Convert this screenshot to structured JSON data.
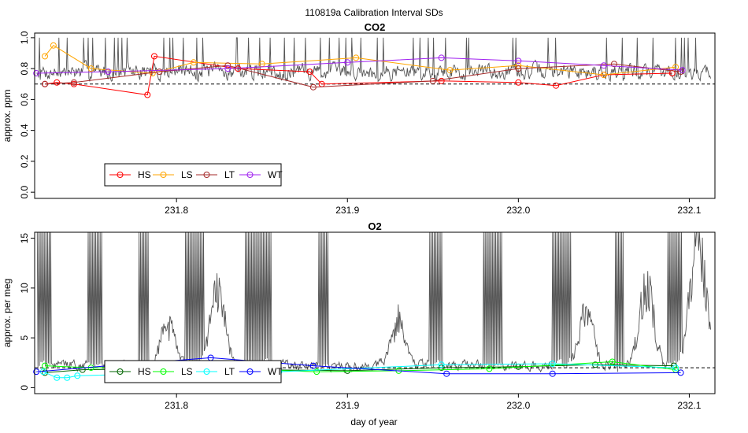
{
  "figure_title": "110819a   Calibration Interval SDs",
  "xlabel": "day of year",
  "chart_data": [
    {
      "type": "line",
      "title": "CO2",
      "ylabel": "approx. ppm",
      "xlim": [
        231.717,
        232.115
      ],
      "ylim": [
        -0.04,
        1.03
      ],
      "x_ticks": [
        "231.8",
        "231.9",
        "232.0",
        "232.1"
      ],
      "y_ticks": [
        "0.0",
        "0.2",
        "0.4",
        "0.6",
        "0.8",
        "1.0"
      ],
      "reference_line": 0.7,
      "legend": [
        "HS",
        "LS",
        "LT",
        "WT"
      ],
      "legend_location": "bottom-left",
      "background_trace": {
        "color": "#555555",
        "description_values_range": [
          0.5,
          1.0
        ],
        "seed": 7,
        "base": 0.78,
        "noise": 0.09,
        "spike_prob": 0.06,
        "spike_value": 1.0,
        "clip_max": 1.0
      },
      "series": [
        {
          "name": "HS",
          "color": "#ff0000",
          "x": [
            231.723,
            231.73,
            231.74,
            231.783,
            231.787,
            231.836,
            231.878,
            231.885,
            231.955,
            232.0,
            232.022,
            232.05,
            232.09
          ],
          "y": [
            0.7,
            0.71,
            0.7,
            0.63,
            0.88,
            0.8,
            0.78,
            0.7,
            0.72,
            0.71,
            0.69,
            0.76,
            0.77
          ]
        },
        {
          "name": "LS",
          "color": "#ffa500",
          "x": [
            231.723,
            231.728,
            231.75,
            231.786,
            231.81,
            231.85,
            231.905,
            231.96,
            232.0,
            232.05,
            232.092
          ],
          "y": [
            0.88,
            0.95,
            0.8,
            0.77,
            0.84,
            0.83,
            0.87,
            0.79,
            0.82,
            0.76,
            0.81
          ]
        },
        {
          "name": "LT",
          "color": "#a52a2a",
          "x": [
            231.723,
            231.74,
            231.79,
            231.83,
            231.88,
            231.95,
            232.0,
            232.056,
            232.095
          ],
          "y": [
            0.7,
            0.71,
            0.78,
            0.82,
            0.68,
            0.72,
            0.8,
            0.83,
            0.78
          ]
        },
        {
          "name": "WT",
          "color": "#a020f0",
          "x": [
            231.718,
            231.76,
            231.83,
            231.9,
            231.955,
            232.0,
            232.05,
            232.096
          ],
          "y": [
            0.77,
            0.78,
            0.8,
            0.84,
            0.87,
            0.85,
            0.82,
            0.79
          ]
        }
      ]
    },
    {
      "type": "line",
      "title": "O2",
      "ylabel": "approx. per meg",
      "xlim": [
        231.717,
        232.115
      ],
      "ylim": [
        -0.6,
        15.6
      ],
      "x_ticks": [
        "231.8",
        "231.9",
        "232.0",
        "232.1"
      ],
      "y_ticks": [
        "0",
        "5",
        "10",
        "15"
      ],
      "reference_line": 2.0,
      "legend": [
        "HS",
        "LS",
        "LT",
        "WT"
      ],
      "legend_location": "bottom-left",
      "background_trace": {
        "color": "#555555",
        "description_values_range": [
          0.5,
          16
        ],
        "seed": 13,
        "base": 2.2,
        "noise": 0.9,
        "spike_prob": 0.0,
        "spike_value": 16,
        "clip_max": 15.6,
        "bursts": [
          [
            231.718,
            231.727
          ],
          [
            231.748,
            231.757
          ],
          [
            231.778,
            231.784
          ],
          [
            231.805,
            231.816
          ],
          [
            231.84,
            231.856
          ],
          [
            231.883,
            231.889
          ],
          [
            231.948,
            231.956
          ],
          [
            231.979,
            231.991
          ],
          [
            232.02,
            232.031
          ],
          [
            232.056,
            232.062
          ],
          [
            232.087,
            232.096
          ]
        ],
        "humps": [
          [
            231.795,
            4.5
          ],
          [
            231.824,
            8.0
          ],
          [
            231.93,
            5.0
          ],
          [
            232.04,
            6.0
          ],
          [
            232.075,
            9.0
          ],
          [
            232.105,
            15.0
          ]
        ]
      },
      "series": [
        {
          "name": "HS",
          "color": "#006400",
          "x": [
            231.723,
            231.745,
            231.79,
            231.85,
            231.9,
            231.955,
            232.0,
            232.045,
            232.091
          ],
          "y": [
            1.5,
            1.8,
            1.9,
            1.8,
            1.7,
            2.0,
            2.1,
            2.3,
            2.2
          ]
        },
        {
          "name": "LS",
          "color": "#00ff00",
          "x": [
            231.723,
            231.75,
            231.8,
            231.882,
            231.93,
            231.983,
            232.055,
            232.092
          ],
          "y": [
            2.2,
            2.0,
            2.1,
            1.6,
            1.7,
            1.9,
            2.6,
            1.8
          ]
        },
        {
          "name": "LT",
          "color": "#00ffff",
          "x": [
            231.722,
            231.73,
            231.736,
            231.742,
            231.79,
            231.86,
            231.955,
            232.02,
            232.092
          ],
          "y": [
            1.6,
            1.0,
            1.0,
            1.2,
            1.4,
            1.6,
            2.3,
            2.4,
            2.0
          ]
        },
        {
          "name": "WT",
          "color": "#0000ff",
          "x": [
            231.718,
            231.76,
            231.82,
            231.88,
            231.958,
            232.02,
            232.095
          ],
          "y": [
            1.6,
            2.2,
            3.0,
            2.2,
            1.4,
            1.4,
            1.5
          ]
        }
      ]
    }
  ]
}
